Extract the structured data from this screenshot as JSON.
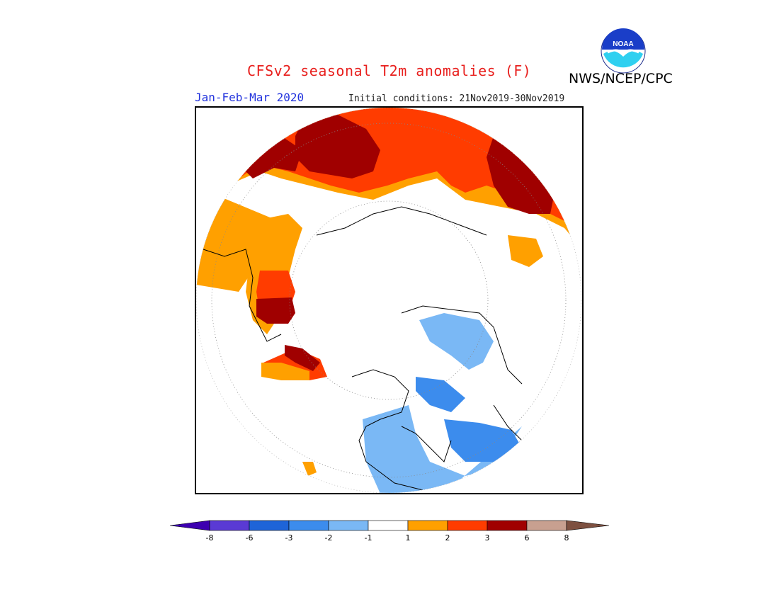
{
  "header": {
    "title": "CFSv2 seasonal T2m anomalies (F)",
    "agency": "NWS/NCEP/CPC",
    "season": "Jan-Feb-Mar 2020",
    "initial_conditions": "Initial conditions: 21Nov2019-30Nov2019",
    "logo_text": "NOAA"
  },
  "legend": {
    "ticks": [
      "-8",
      "-6",
      "-3",
      "-2",
      "-1",
      "1",
      "2",
      "3",
      "6",
      "8"
    ],
    "colors": [
      "#3d00b0",
      "#5a3ad4",
      "#1e64d8",
      "#3c8ced",
      "#7ab8f5",
      "#ffffff",
      "#ffa000",
      "#ff3c00",
      "#a00000",
      "#c8a090",
      "#7d5040"
    ]
  },
  "colors": {
    "title": "#e8201e",
    "season": "#2233dd",
    "orange": "#ffa000",
    "red": "#ff3c00",
    "darkred": "#a00000",
    "lightblue": "#7ab8f5",
    "blue": "#3c8ced"
  }
}
